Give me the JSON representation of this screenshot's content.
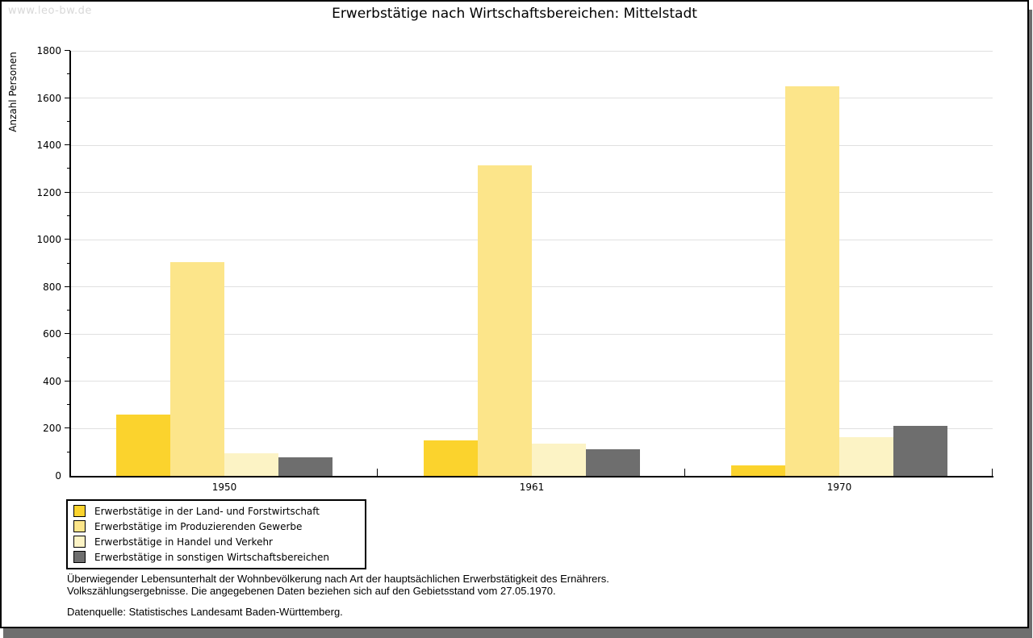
{
  "window": {
    "watermark": "www.leo-bw.de",
    "title": "Erwerbstätige nach Wirtschaftsbereichen: Mittelstadt"
  },
  "chart_data": {
    "type": "bar",
    "title": "Erwerbstätige nach Wirtschaftsbereichen: Mittelstadt",
    "xlabel": "",
    "ylabel": "Anzahl Personen",
    "categories": [
      "1950",
      "1961",
      "1970"
    ],
    "series": [
      {
        "name": "Erwerbstätige in der Land- und Forstwirtschaft",
        "color": "#fbd32d",
        "values": [
          260,
          150,
          45
        ]
      },
      {
        "name": "Erwerbstätige im Produzierenden Gewerbe",
        "color": "#fce58a",
        "values": [
          905,
          1315,
          1650
        ]
      },
      {
        "name": "Erwerbstätige in Handel und Verkehr",
        "color": "#fcf3c5",
        "values": [
          95,
          137,
          165
        ]
      },
      {
        "name": "Erwerbstätige in sonstigen Wirtschaftsbereichen",
        "color": "#6e6e6e",
        "values": [
          78,
          112,
          213
        ]
      }
    ],
    "ylim": [
      0,
      1800
    ],
    "ytick_step": 200,
    "yminor_step": 100,
    "grid": true,
    "gridline_color": "#e0e0e0",
    "legend_position": "bottom-left"
  },
  "footer": {
    "note_line1": "Überwiegender Lebensunterhalt der Wohnbevölkerung nach Art der hauptsächlichen Erwerbstätigkeit des Ernährers.",
    "note_line2": "Volkszählungsergebnisse. Die angegebenen Daten beziehen sich auf den Gebietsstand vom 27.05.1970.",
    "source": "Datenquelle: Statistisches Landesamt Baden-Württemberg."
  }
}
